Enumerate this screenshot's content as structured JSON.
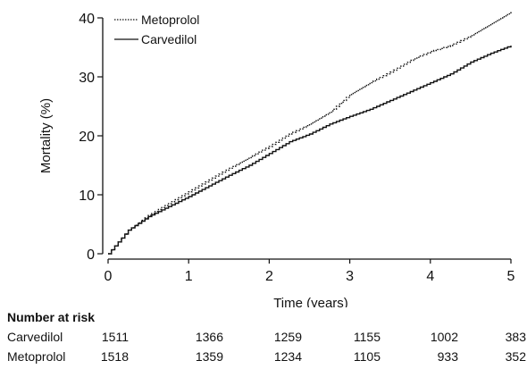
{
  "chart_data": {
    "type": "line",
    "title": "",
    "xlabel": "Time (years)",
    "ylabel": "Mortality (%)",
    "xlim": [
      0,
      5
    ],
    "ylim": [
      0,
      40
    ],
    "xticks": [
      "0",
      "1",
      "2",
      "3",
      "4",
      "5"
    ],
    "yticks": [
      "0",
      "10",
      "20",
      "30",
      "40"
    ],
    "grid": false,
    "legend_position": "top-left",
    "series": [
      {
        "name": "Metoprolol",
        "style": "dotted",
        "color": "#111111",
        "x": [
          0,
          0.25,
          0.5,
          0.75,
          1.0,
          1.25,
          1.5,
          1.75,
          2.0,
          2.25,
          2.5,
          2.75,
          3.0,
          3.25,
          3.5,
          3.75,
          4.0,
          4.25,
          4.5,
          4.75,
          5.0
        ],
        "y": [
          0,
          4.0,
          6.5,
          8.5,
          10.5,
          12.5,
          14.5,
          16.3,
          18.2,
          20.3,
          22.0,
          24.0,
          27.0,
          29.0,
          30.8,
          32.8,
          34.3,
          35.3,
          37.0,
          39.0,
          41.0
        ]
      },
      {
        "name": "Carvedilol",
        "style": "solid",
        "color": "#111111",
        "x": [
          0,
          0.25,
          0.5,
          0.75,
          1.0,
          1.25,
          1.5,
          1.75,
          2.0,
          2.25,
          2.5,
          2.75,
          3.0,
          3.25,
          3.5,
          3.75,
          4.0,
          4.25,
          4.5,
          4.75,
          5.0
        ],
        "y": [
          0,
          4.0,
          6.3,
          8.0,
          9.7,
          11.5,
          13.3,
          15.0,
          17.0,
          19.0,
          20.3,
          22.0,
          23.3,
          24.5,
          26.0,
          27.5,
          29.0,
          30.5,
          32.5,
          34.0,
          35.3
        ]
      }
    ]
  },
  "risk_table": {
    "title": "Number at risk",
    "rows": [
      {
        "name": "Carvedilol",
        "values": [
          "1511",
          "1366",
          "1259",
          "1155",
          "1002",
          "383"
        ]
      },
      {
        "name": "Metoprolol",
        "values": [
          "1518",
          "1359",
          "1234",
          "1105",
          "933",
          "352"
        ]
      }
    ]
  }
}
